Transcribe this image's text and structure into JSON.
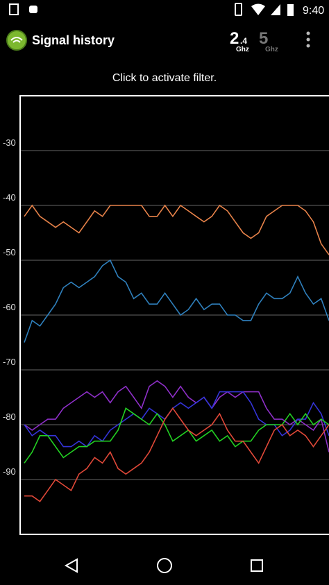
{
  "status_bar": {
    "time": "9:40"
  },
  "app_bar": {
    "title": "Signal history",
    "band_24": {
      "big": "2",
      "small": ".4",
      "unit": "Ghz"
    },
    "band_5": {
      "big": "5",
      "unit": "Ghz"
    }
  },
  "hint": "Click to activate filter.",
  "chart_data": {
    "type": "line",
    "ylim": [
      -100,
      -20
    ],
    "yticks": [
      -30,
      -40,
      -50,
      -60,
      -70,
      -80,
      -90
    ],
    "grid": true,
    "series": [
      {
        "color": "#e8834a",
        "values": [
          -42,
          -40,
          -42,
          -43,
          -44,
          -43,
          -44,
          -45,
          -43,
          -41,
          -42,
          -40,
          -40,
          -40,
          -40,
          -40,
          -42,
          -42,
          -40,
          -42,
          -40,
          -41,
          -42,
          -43,
          -42,
          -40,
          -41,
          -43,
          -45,
          -46,
          -45,
          -42,
          -41,
          -40,
          -40,
          -40,
          -41,
          -43,
          -47,
          -49
        ]
      },
      {
        "color": "#2f80bd",
        "values": [
          -65,
          -61,
          -62,
          -60,
          -58,
          -55,
          -54,
          -55,
          -54,
          -53,
          -51,
          -50,
          -53,
          -54,
          -57,
          -56,
          -58,
          -58,
          -56,
          -58,
          -60,
          -59,
          -57,
          -59,
          -58,
          -58,
          -60,
          -60,
          -61,
          -61,
          -58,
          -56,
          -57,
          -57,
          -56,
          -53,
          -56,
          -58,
          -57,
          -61
        ]
      },
      {
        "color": "#8e2fc8",
        "values": [
          -80,
          -81,
          -80,
          -79,
          -79,
          -77,
          -76,
          -75,
          -74,
          -75,
          -74,
          -76,
          -74,
          -73,
          -75,
          -77,
          -73,
          -72,
          -73,
          -75,
          -73,
          -75,
          -76,
          -75,
          -77,
          -75,
          -74,
          -75,
          -74,
          -74,
          -74,
          -77,
          -79,
          -79,
          -80,
          -79,
          -80,
          -81,
          -79,
          -85
        ]
      },
      {
        "color": "#3434d8",
        "values": [
          -80,
          -82,
          -81,
          -82,
          -82,
          -84,
          -84,
          -83,
          -84,
          -82,
          -83,
          -81,
          -80,
          -79,
          -78,
          -79,
          -77,
          -78,
          -79,
          -77,
          -76,
          -77,
          -76,
          -75,
          -77,
          -74,
          -74,
          -74,
          -74,
          -76,
          -79,
          -80,
          -80,
          -82,
          -81,
          -79,
          -79,
          -76,
          -78,
          -82
        ]
      },
      {
        "color": "#22d022",
        "values": [
          -87,
          -85,
          -82,
          -82,
          -84,
          -86,
          -85,
          -84,
          -84,
          -83,
          -83,
          -83,
          -81,
          -77,
          -78,
          -79,
          -80,
          -78,
          -80,
          -83,
          -82,
          -81,
          -83,
          -82,
          -81,
          -83,
          -82,
          -84,
          -83,
          -83,
          -81,
          -80,
          -80,
          -80,
          -78,
          -80,
          -78,
          -80,
          -79,
          -80
        ]
      },
      {
        "color": "#e04838",
        "values": [
          -93,
          -93,
          -94,
          -92,
          -90,
          -91,
          -92,
          -89,
          -88,
          -86,
          -87,
          -85,
          -88,
          -89,
          -88,
          -87,
          -85,
          -82,
          -79,
          -77,
          -79,
          -81,
          -82,
          -81,
          -80,
          -78,
          -81,
          -83,
          -83,
          -85,
          -87,
          -84,
          -81,
          -80,
          -82,
          -81,
          -82,
          -84,
          -82,
          -80
        ]
      }
    ]
  }
}
